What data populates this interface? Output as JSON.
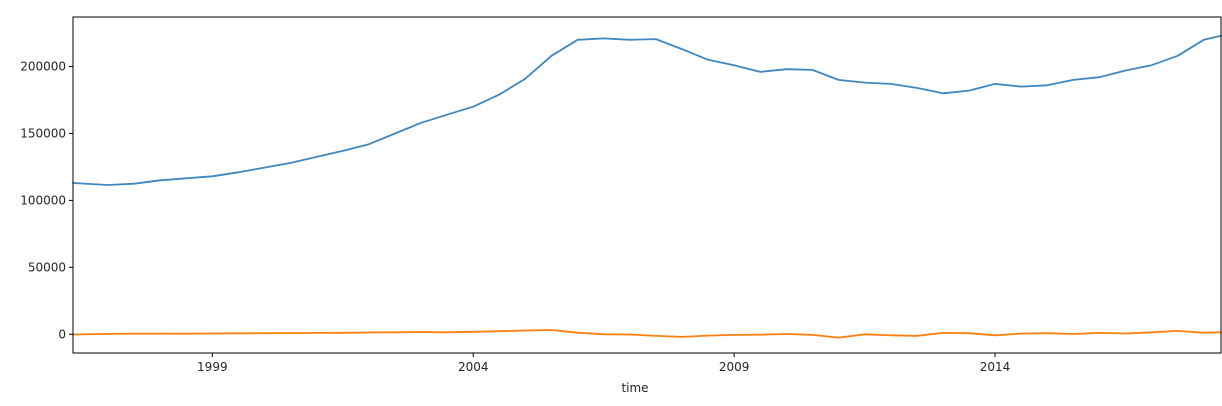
{
  "chart_data": {
    "type": "line",
    "title": "",
    "xlabel": "time",
    "ylabel": "",
    "xlim": [
      1996.33,
      2018.33
    ],
    "ylim": [
      -14000,
      237000
    ],
    "x_ticks": [
      {
        "value": 1999,
        "label": "1999"
      },
      {
        "value": 2004,
        "label": "2004"
      },
      {
        "value": 2009,
        "label": "2009"
      },
      {
        "value": 2014,
        "label": "2014"
      }
    ],
    "y_ticks": [
      {
        "value": 0,
        "label": "0"
      },
      {
        "value": 50000,
        "label": "50000"
      },
      {
        "value": 100000,
        "label": "100000"
      },
      {
        "value": 150000,
        "label": "150000"
      },
      {
        "value": 200000,
        "label": "200000"
      }
    ],
    "grid": false,
    "series": [
      {
        "color": "#3f87c1",
        "x": [
          1996.33,
          1997.0,
          1997.5,
          1998.0,
          1998.5,
          1999.0,
          1999.5,
          2000.0,
          2000.5,
          2001.0,
          2001.5,
          2002.0,
          2002.5,
          2003.0,
          2003.5,
          2004.0,
          2004.5,
          2005.0,
          2005.5,
          2006.0,
          2006.5,
          2007.0,
          2007.5,
          2008.0,
          2008.5,
          2009.0,
          2009.5,
          2010.0,
          2010.5,
          2011.0,
          2011.5,
          2012.0,
          2012.5,
          2013.0,
          2013.5,
          2014.0,
          2014.5,
          2015.0,
          2015.5,
          2016.0,
          2016.5,
          2017.0,
          2017.5,
          2018.0,
          2018.33
        ],
        "values": [
          113000,
          111500,
          112500,
          115000,
          116500,
          118000,
          121000,
          124500,
          128000,
          132500,
          137000,
          142000,
          150000,
          158000,
          164000,
          170000,
          179000,
          191000,
          208000,
          220000,
          221000,
          220000,
          220500,
          213000,
          205000,
          201000,
          196000,
          198000,
          197500,
          190000,
          188000,
          187000,
          184000,
          180000,
          182000,
          187000,
          185000,
          186000,
          190000,
          192000,
          197000,
          201000,
          208000,
          220000,
          223000
        ]
      },
      {
        "color": "#ff7f0e",
        "x": [
          1996.33,
          1997.0,
          1997.5,
          1998.0,
          1998.5,
          1999.0,
          1999.5,
          2000.0,
          2000.5,
          2001.0,
          2001.5,
          2002.0,
          2002.5,
          2003.0,
          2003.5,
          2004.0,
          2004.5,
          2005.0,
          2005.5,
          2006.0,
          2006.5,
          2007.0,
          2007.5,
          2008.0,
          2008.5,
          2009.0,
          2009.5,
          2010.0,
          2010.5,
          2011.0,
          2011.5,
          2012.0,
          2012.5,
          2013.0,
          2013.5,
          2014.0,
          2014.5,
          2015.0,
          2015.5,
          2016.0,
          2016.5,
          2017.0,
          2017.5,
          2018.0,
          2018.33
        ],
        "values": [
          -200,
          300,
          400,
          500,
          400,
          600,
          700,
          800,
          900,
          1000,
          1100,
          1300,
          1500,
          1700,
          1500,
          1800,
          2300,
          2800,
          3200,
          1200,
          0,
          -200,
          -1200,
          -2000,
          -1000,
          -500,
          -300,
          200,
          -500,
          -2500,
          0,
          -800,
          -1200,
          1000,
          800,
          -800,
          500,
          800,
          200,
          1000,
          600,
          1500,
          2500,
          1200,
          1500
        ]
      }
    ]
  }
}
